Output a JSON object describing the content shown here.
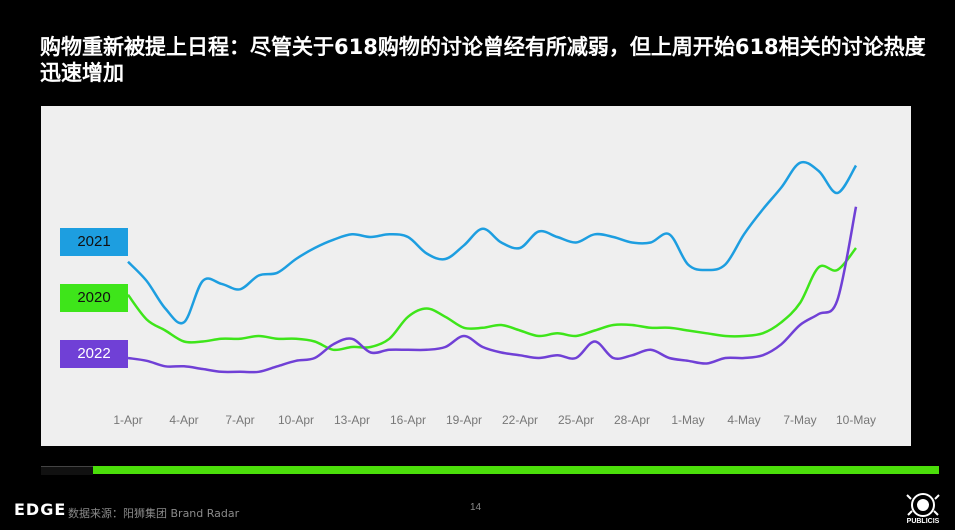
{
  "title": "购物重新被提上日程：尽管关于618购物的讨论曾经有所减弱，但上周开始618相关的讨论热度迅速增加",
  "footer": {
    "brand": "EDGE",
    "source": "数据来源：阳狮集团 Brand Radar",
    "page_number": "14",
    "publicis": "PUBLICIS"
  },
  "colors": {
    "background": "#000000",
    "panel": "#efefef",
    "accent_green": "#4bde0a"
  },
  "chart_data": {
    "type": "line",
    "categories": [
      "1-Apr",
      "4-Apr",
      "7-Apr",
      "10-Apr",
      "13-Apr",
      "16-Apr",
      "19-Apr",
      "22-Apr",
      "25-Apr",
      "28-Apr",
      "1-May",
      "4-May",
      "7-May",
      "10-May"
    ],
    "x": [
      1,
      2,
      3,
      4,
      5,
      6,
      7,
      8,
      9,
      10,
      11,
      12,
      13,
      14,
      15,
      16,
      17,
      18,
      19,
      20,
      21,
      22,
      23,
      24,
      25,
      26,
      27,
      28,
      29,
      30,
      31,
      32,
      33,
      34,
      35,
      36,
      37,
      38,
      39,
      40
    ],
    "ylim": [
      0,
      100
    ],
    "grid": false,
    "legend": "left",
    "series": [
      {
        "name": "2021",
        "color": "#1d9ee0",
        "values": [
          47,
          40,
          30,
          25,
          40,
          39,
          37,
          42,
          43,
          48,
          52,
          55,
          57,
          56,
          57,
          56,
          50,
          48,
          53,
          59,
          54,
          52,
          58,
          56,
          54,
          57,
          56,
          54,
          54,
          57,
          46,
          44,
          46,
          57,
          66,
          74,
          83,
          80,
          72,
          82
        ]
      },
      {
        "name": "2020",
        "color": "#3ee51a",
        "values": [
          35,
          26,
          22,
          18,
          18,
          19,
          19,
          20,
          19,
          19,
          18,
          15,
          16,
          16,
          19,
          27,
          30,
          27,
          23,
          23,
          24,
          22,
          20,
          21,
          20,
          22,
          24,
          24,
          23,
          23,
          22,
          21,
          20,
          20,
          21,
          25,
          32,
          45,
          44,
          52
        ]
      },
      {
        "name": "2022",
        "color": "#7040d6",
        "values": [
          12,
          11,
          9,
          9,
          8,
          7,
          7,
          7,
          9,
          11,
          12,
          17,
          19,
          14,
          15,
          15,
          15,
          16,
          20,
          16,
          14,
          13,
          12,
          13,
          12,
          18,
          12,
          13,
          15,
          12,
          11,
          10,
          12,
          12,
          13,
          17,
          24,
          28,
          33,
          67
        ]
      }
    ]
  }
}
